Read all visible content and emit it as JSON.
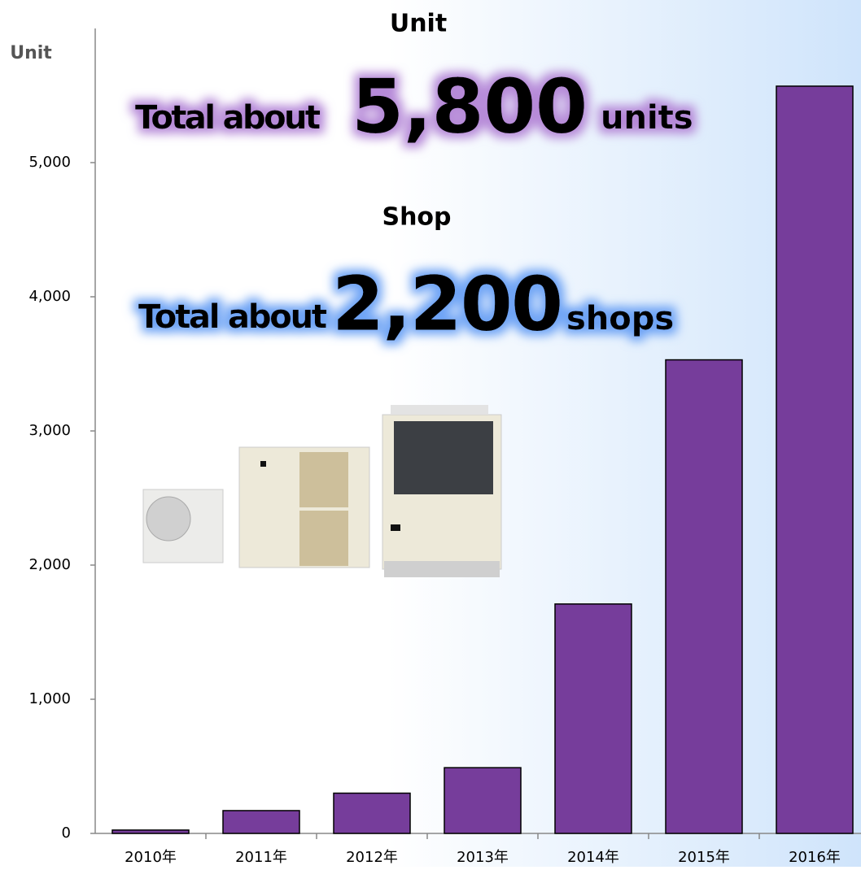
{
  "chart_data": {
    "type": "bar",
    "y_label": "Unit",
    "categories": [
      "2010年",
      "2011年",
      "2012年",
      "2013年",
      "2014年",
      "2015年",
      "2016年"
    ],
    "values": [
      25,
      170,
      300,
      490,
      1710,
      3530,
      5570
    ],
    "color": "#763d9b",
    "ylim": [
      0,
      6000
    ],
    "yticks": [
      0,
      {
        "value": 1000,
        "label": "1,000"
      },
      {
        "value": 2000,
        "label": "2,000"
      },
      {
        "value": 3000,
        "label": "3,000"
      },
      {
        "value": 4000,
        "label": "4,000"
      },
      {
        "value": 5000,
        "label": "5,000"
      }
    ],
    "annotations": {
      "unit_header": "Unit",
      "unit_prefix": "Total about",
      "unit_number": "5,800",
      "unit_suffix": "units",
      "shop_header": "Shop",
      "shop_prefix": "Total about",
      "shop_number": "2,200",
      "shop_suffix": "shops"
    }
  }
}
